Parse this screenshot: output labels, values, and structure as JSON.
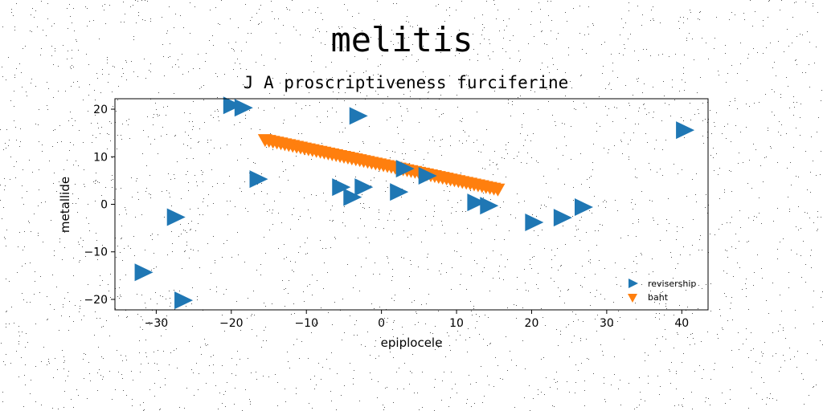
{
  "chart_data": {
    "type": "scatter",
    "title": "melitis",
    "subtitle": "J A proscriptiveness furciferine",
    "xlabel": "epiplocele",
    "ylabel": "metallide",
    "xlim": [
      -35.5,
      43.5
    ],
    "ylim": [
      -22.2,
      22.2
    ],
    "xticks": [
      -30,
      -20,
      -10,
      0,
      10,
      20,
      30,
      40
    ],
    "yticks": [
      -20,
      -10,
      0,
      10,
      20
    ],
    "xtick_labels": [
      "−30",
      "−20",
      "−10",
      "0",
      "10",
      "20",
      "30",
      "40"
    ],
    "ytick_labels": [
      "−20",
      "−10",
      "0",
      "10",
      "20"
    ],
    "grid": false,
    "legend_position": "lower-right",
    "series": [
      {
        "name": "revisership",
        "marker": "triangle-right",
        "color": "#1f77b4",
        "points": [
          [
            -20.0,
            20.8
          ],
          [
            -18.5,
            20.3
          ],
          [
            -3.2,
            18.6
          ],
          [
            40.3,
            15.6
          ],
          [
            -16.5,
            5.3
          ],
          [
            3.0,
            7.5
          ],
          [
            6.0,
            6.0
          ],
          [
            -5.5,
            3.6
          ],
          [
            -2.5,
            3.6
          ],
          [
            -4.0,
            1.5
          ],
          [
            2.2,
            2.6
          ],
          [
            12.5,
            0.4
          ],
          [
            14.2,
            -0.3
          ],
          [
            -27.5,
            -2.7
          ],
          [
            20.2,
            -3.8
          ],
          [
            24.0,
            -2.8
          ],
          [
            26.8,
            -0.6
          ],
          [
            -31.8,
            -14.3
          ],
          [
            -26.5,
            -20.2
          ]
        ]
      },
      {
        "name": "baht",
        "marker": "triangle-down",
        "color": "#ff7f0e",
        "line_fit": {
          "x_start": -15.5,
          "x_end": 15.5,
          "y_start": 13.4,
          "y_end": 3.0,
          "count": 60
        }
      }
    ]
  }
}
